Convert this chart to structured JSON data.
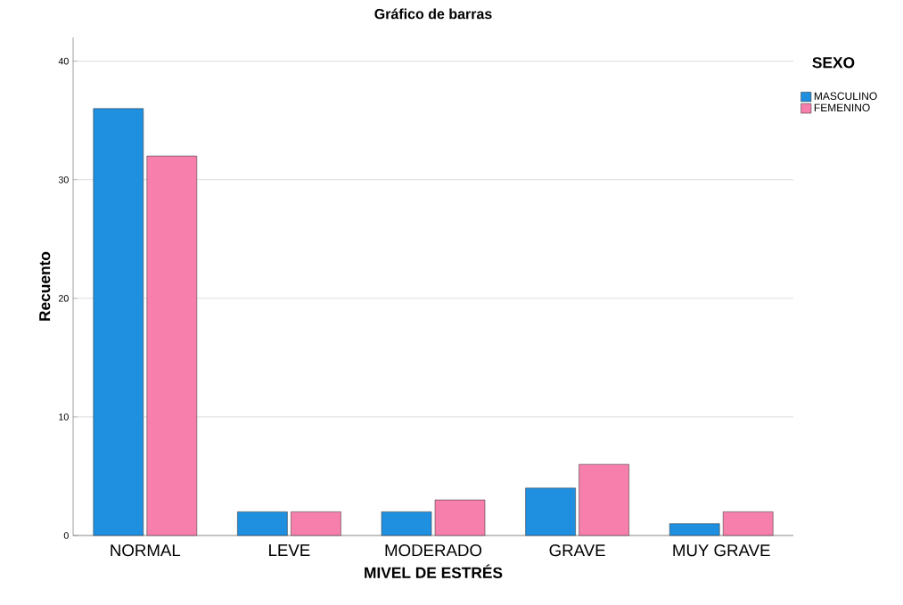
{
  "chart_data": {
    "type": "bar",
    "title": "Gráfico de barras",
    "xlabel": "MIVEL DE ESTRÉS",
    "ylabel": "Recuento",
    "legend_title": "SEXO",
    "categories": [
      "NORMAL",
      "LEVE",
      "MODERADO",
      "GRAVE",
      "MUY GRAVE"
    ],
    "series": [
      {
        "name": "MASCULINO",
        "color": "#1f8fe0",
        "values": [
          36,
          2,
          2,
          4,
          1
        ]
      },
      {
        "name": "FEMENINO",
        "color": "#f67fab",
        "values": [
          32,
          2,
          3,
          6,
          2
        ]
      }
    ],
    "ylim": [
      0,
      42
    ],
    "yticks": [
      0,
      10,
      20,
      30,
      40
    ],
    "grid": "y",
    "legend": "top right"
  }
}
